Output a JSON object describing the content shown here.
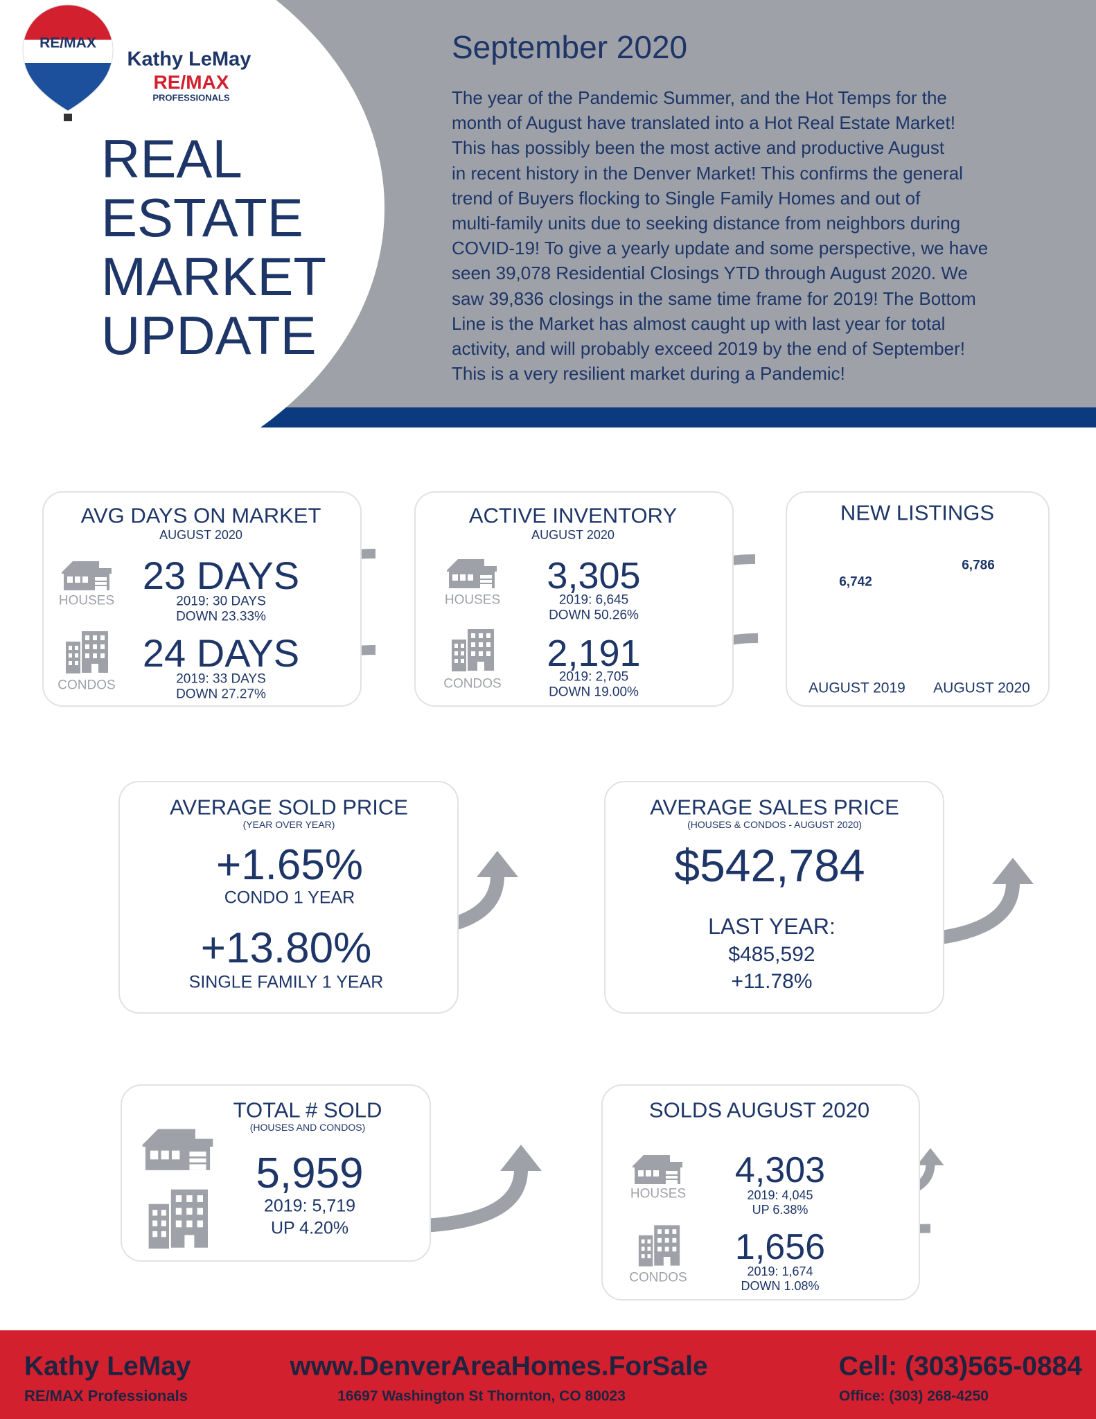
{
  "logo": {
    "brand": "RE/MAX",
    "agent": "Kathy LeMay",
    "company": "RE/MAX",
    "division": "PROFESSIONALS"
  },
  "header": {
    "title_lines": [
      "REAL",
      "ESTATE",
      "MARKET",
      "UPDATE"
    ],
    "date": "September 2020",
    "body_lines": [
      "The year of the Pandemic Summer, and the Hot Temps for the",
      "month of August have translated into a Hot Real Estate Market!",
      "This has possibly been the most active and productive August",
      "in recent history in the Denver Market! This confirms the general",
      "trend of Buyers flocking to Single Family Homes and out of",
      "multi-family units due to seeking distance from neighbors during",
      "COVID-19! To give a yearly update and some perspective, we have",
      "seen 39,078 Residential Closings YTD through August 2020. We",
      "saw 39,836 closings in the same time frame for 2019! The Bottom",
      "Line is the Market has almost caught up with last year for total",
      "activity, and will probably exceed 2019 by the end of September!",
      "This is a very resilient market during a Pandemic!"
    ]
  },
  "cards": [
    {
      "title": "AVG DAYS ON MARKET",
      "subtitle": "AUGUST 2020",
      "rows": [
        {
          "icon_label": "HOUSES",
          "value": "23 DAYS",
          "prior": "2019: 30 DAYS",
          "change": "DOWN 23.33%"
        },
        {
          "icon_label": "CONDOS",
          "value": "24 DAYS",
          "prior": "2019: 33 DAYS",
          "change": "DOWN 27.27%"
        }
      ]
    },
    {
      "title": "ACTIVE INVENTORY",
      "subtitle": "AUGUST 2020",
      "rows": [
        {
          "icon_label": "HOUSES",
          "value": "3,305",
          "prior": "2019: 6,645",
          "change": "DOWN 50.26%"
        },
        {
          "icon_label": "CONDOS",
          "value": "2,191",
          "prior": "2019: 2,705",
          "change": "DOWN 19.00%"
        }
      ]
    },
    {
      "title": "NEW LISTINGS",
      "bars": [
        {
          "value": "6,742",
          "label": "AUGUST 2019"
        },
        {
          "value": "6,786",
          "label": "AUGUST 2020"
        }
      ]
    },
    {
      "title": "AVERAGE SOLD PRICE",
      "subtitle": "(YEAR OVER YEAR)",
      "items": [
        {
          "value": "+1.65%",
          "label": "CONDO 1 YEAR"
        },
        {
          "value": "+13.80%",
          "label": "SINGLE FAMILY 1 YEAR"
        }
      ]
    },
    {
      "title": "AVERAGE SALES PRICE",
      "subtitle": "(HOUSES & CONDOS - AUGUST 2020)",
      "value": "$542,784",
      "lines": [
        "LAST YEAR:",
        "$485,592",
        "+11.78%"
      ]
    },
    {
      "title": "TOTAL # SOLD",
      "subtitle": "(HOUSES AND CONDOS)",
      "value": "5,959",
      "prior": "2019: 5,719",
      "change": "UP 4.20%"
    },
    {
      "title": "SOLDS AUGUST 2020",
      "rows": [
        {
          "icon_label": "HOUSES",
          "value": "4,303",
          "prior": "2019: 4,045",
          "change": "UP 6.38%"
        },
        {
          "icon_label": "CONDOS",
          "value": "1,656",
          "prior": "2019: 1,674",
          "change": "DOWN 1.08%"
        }
      ]
    }
  ],
  "footer": {
    "name": "Kathy LeMay",
    "company": "RE/MAX Professionals",
    "website": "www.DenverAreaHomes.ForSale",
    "address": "16697 Washington St   Thornton, CO  80023",
    "cell": "Cell: (303)565-0884",
    "office": "Office: (303) 268-4250"
  }
}
